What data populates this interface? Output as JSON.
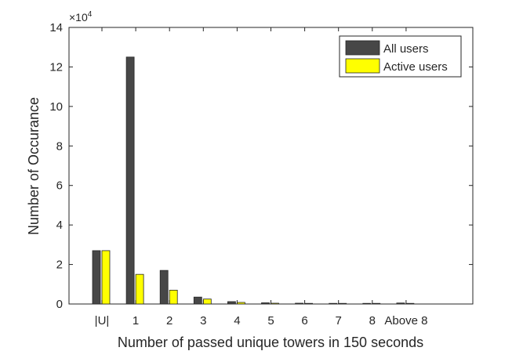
{
  "chart_data": {
    "type": "bar",
    "xlabel": "Number of passed unique towers in 150 seconds",
    "ylabel": "Number of Occurance",
    "y_exponent_label": "×10",
    "y_exponent_power": "4",
    "ylim": [
      0,
      14
    ],
    "yticks": [
      0,
      2,
      4,
      6,
      8,
      10,
      12,
      14
    ],
    "categories": [
      "|U|",
      "1",
      "2",
      "3",
      "4",
      "5",
      "6",
      "7",
      "8",
      "Above 8"
    ],
    "series": [
      {
        "name": "All users",
        "color": "#474747",
        "values": [
          2.7,
          12.5,
          1.7,
          0.35,
          0.12,
          0.06,
          0.04,
          0.02,
          0.02,
          0.05
        ]
      },
      {
        "name": "Active users",
        "color": "#ffff00",
        "values": [
          2.7,
          1.5,
          0.7,
          0.25,
          0.08,
          0.04,
          0.02,
          0.01,
          0.01,
          0.01
        ]
      }
    ],
    "grid": false,
    "legend_position": "top-right"
  }
}
